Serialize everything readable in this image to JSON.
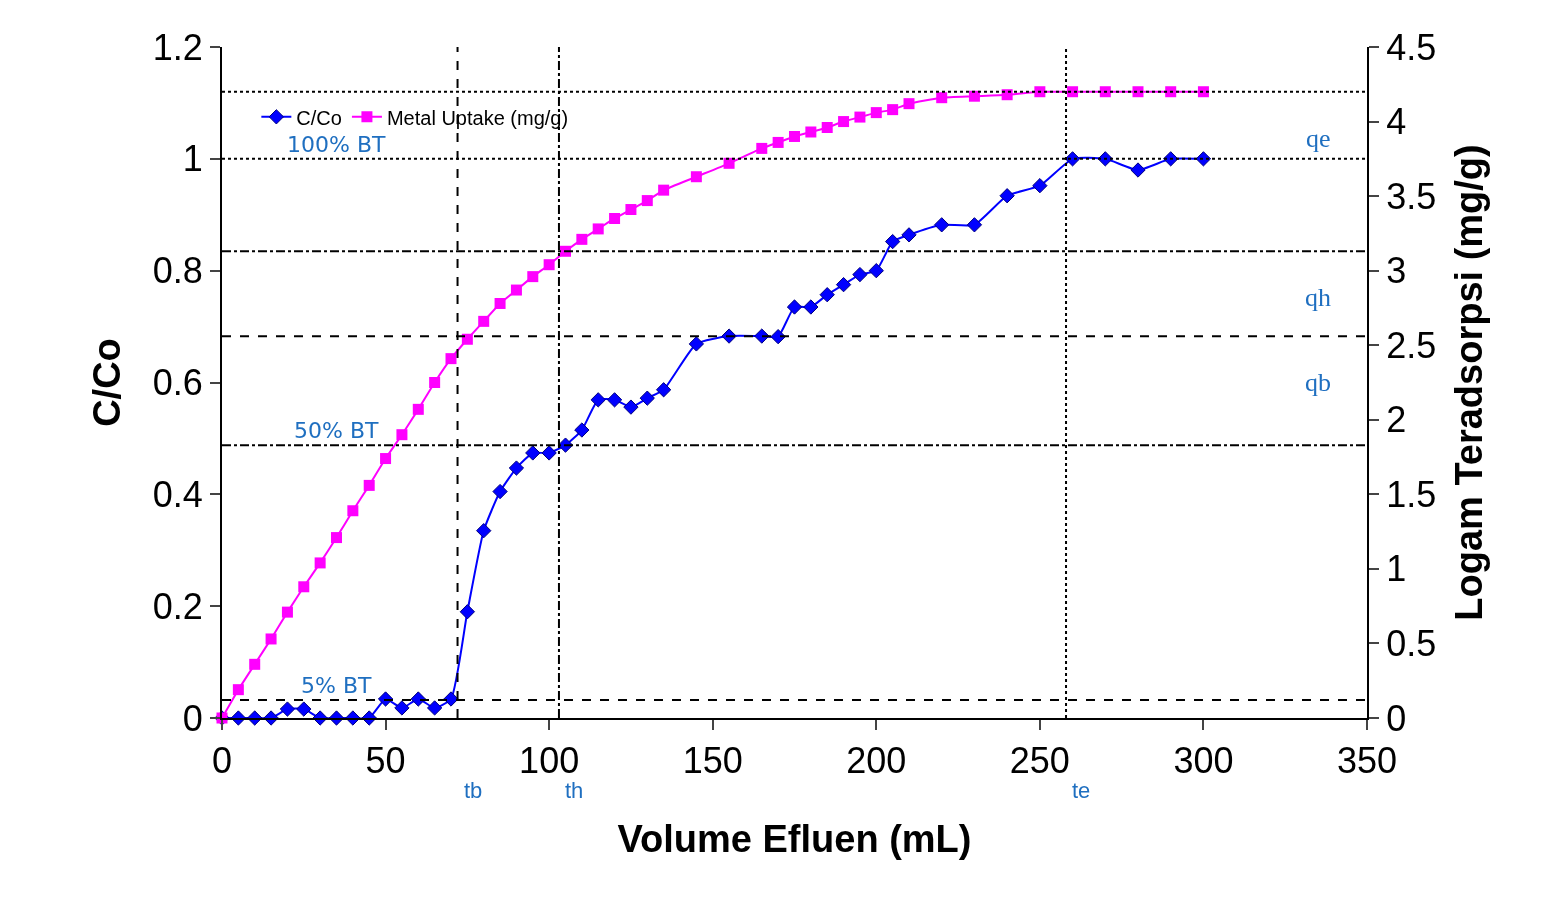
{
  "chart_data": {
    "type": "line",
    "xlabel": "Volume Efluen (mL)",
    "ylabel": "C/Co",
    "y2label": "Logam Teradsorpsi (mg/g)",
    "x": [
      0,
      5,
      10,
      15,
      20,
      25,
      30,
      35,
      40,
      45,
      50,
      55,
      60,
      65,
      70,
      75,
      80,
      85,
      90,
      95,
      100,
      105,
      110,
      115,
      120,
      125,
      130,
      135,
      145,
      155,
      165,
      170,
      175,
      180,
      185,
      190,
      195,
      200,
      205,
      210,
      220,
      230,
      240,
      250,
      260,
      270,
      280,
      290,
      300
    ],
    "series": [
      {
        "name": "C/Co",
        "color": "#0000ff",
        "marker": "diamond",
        "values": [
          0,
          0,
          0,
          0,
          0.016,
          0.016,
          0,
          0,
          0,
          0,
          0.034,
          0.018,
          0.034,
          0.018,
          0.034,
          0.19,
          0.335,
          0.405,
          0.447,
          0.474,
          0.474,
          0.488,
          0.515,
          0.569,
          0.569,
          0.556,
          0.572,
          0.587,
          0.669,
          0.683,
          0.683,
          0.682,
          0.735,
          0.735,
          0.757,
          0.775,
          0.793,
          0.8,
          0.852,
          0.864,
          0.882,
          0.882,
          0.934,
          0.952,
          1.0,
          1.0,
          0.98,
          1.0,
          1.0
        ]
      },
      {
        "name": "Metal Uptake (mg/g)",
        "color": "#ff00ff",
        "marker": "square",
        "axis": "y2",
        "values": [
          0,
          0.19,
          0.36,
          0.53,
          0.71,
          0.88,
          1.04,
          1.21,
          1.39,
          1.56,
          1.74,
          1.9,
          2.07,
          2.25,
          2.41,
          2.54,
          2.66,
          2.78,
          2.87,
          2.96,
          3.04,
          3.13,
          3.21,
          3.28,
          3.35,
          3.41,
          3.47,
          3.54,
          3.63,
          3.72,
          3.82,
          3.86,
          3.9,
          3.93,
          3.96,
          4.0,
          4.03,
          4.06,
          4.08,
          4.12,
          4.16,
          4.17,
          4.18,
          4.2,
          4.2,
          4.2,
          4.2,
          4.2,
          4.2
        ]
      }
    ],
    "xlim": [
      0,
      350
    ],
    "xticks": [
      0,
      50,
      100,
      150,
      200,
      250,
      300,
      350
    ],
    "ylim": [
      0,
      1.2
    ],
    "yticks": [
      0,
      0.2,
      0.4,
      0.6,
      0.8,
      {
        "value": 1,
        "label": "1"
      },
      1.2
    ],
    "y2lim": [
      0,
      4.5
    ],
    "y2ticks": [
      0,
      0.5,
      1,
      1.5,
      2,
      2.5,
      3,
      3.5,
      4,
      4.5
    ],
    "ref_lines": [
      {
        "axis": "y",
        "value": 1,
        "label": "100% BT",
        "line_style": "dotted"
      },
      {
        "axis": "y",
        "value": 0.488,
        "label": "50% BT",
        "line_style": "dashdot"
      },
      {
        "axis": "y",
        "value": 0.032,
        "label": "5% BT",
        "line_style": "dashed"
      },
      {
        "axis": "y2",
        "value": 4.2,
        "label": "qe",
        "line_style": "dotted"
      },
      {
        "axis": "y2",
        "value": 3.13,
        "label": "qh",
        "line_style": "dashdot"
      },
      {
        "axis": "y2",
        "value": 2.56,
        "label": "qb",
        "line_style": "dashed"
      },
      {
        "axis": "x",
        "value": 72,
        "label": "tb",
        "line_style": "dashed"
      },
      {
        "axis": "x",
        "value": 103,
        "label": "th",
        "line_style": "dashdot"
      },
      {
        "axis": "x",
        "value": 258,
        "label": "te",
        "line_style": "dotted"
      }
    ],
    "grid": false,
    "legend": "top left",
    "line_style": "solid"
  }
}
